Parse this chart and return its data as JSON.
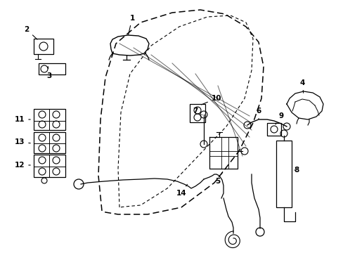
{
  "bg_color": "#ffffff",
  "line_color": "#000000",
  "fig_width": 4.89,
  "fig_height": 3.6,
  "dpi": 100,
  "door_outer": {
    "x": [
      1.4,
      1.35,
      1.4,
      1.6,
      2.0,
      2.7,
      3.5,
      4.3,
      5.0,
      5.4,
      5.55,
      5.6,
      5.55,
      5.4,
      5.0,
      4.2,
      3.3,
      2.5,
      1.9,
      1.5,
      1.4
    ],
    "y": [
      2.1,
      3.5,
      5.5,
      7.0,
      8.2,
      8.9,
      9.3,
      9.45,
      9.35,
      9.0,
      8.4,
      7.2,
      5.8,
      4.8,
      3.8,
      3.0,
      2.4,
      2.1,
      2.0,
      2.05,
      2.1
    ]
  },
  "door_inner": {
    "x": [
      1.8,
      1.78,
      1.85,
      2.1,
      2.6,
      3.4,
      4.2,
      4.9,
      5.2,
      5.3,
      5.3,
      5.2,
      4.8,
      4.0,
      3.1,
      2.4,
      1.95,
      1.8
    ],
    "y": [
      2.3,
      3.5,
      5.2,
      6.7,
      7.9,
      8.5,
      8.8,
      8.7,
      8.3,
      7.6,
      6.2,
      5.2,
      4.2,
      3.3,
      2.6,
      2.3,
      2.25,
      2.3
    ]
  },
  "hatch": [
    {
      "x": [
        1.95,
        5.25
      ],
      "y": [
        8.6,
        3.5
      ]
    },
    {
      "x": [
        2.2,
        5.3
      ],
      "y": [
        8.55,
        3.6
      ]
    },
    {
      "x": [
        2.55,
        5.3
      ],
      "y": [
        8.4,
        3.65
      ]
    },
    {
      "x": [
        2.9,
        5.28
      ],
      "y": [
        8.15,
        3.75
      ]
    },
    {
      "x": [
        3.3,
        5.25
      ],
      "y": [
        7.9,
        3.85
      ]
    },
    {
      "x": [
        3.7,
        5.2
      ],
      "y": [
        7.6,
        4.0
      ]
    }
  ]
}
